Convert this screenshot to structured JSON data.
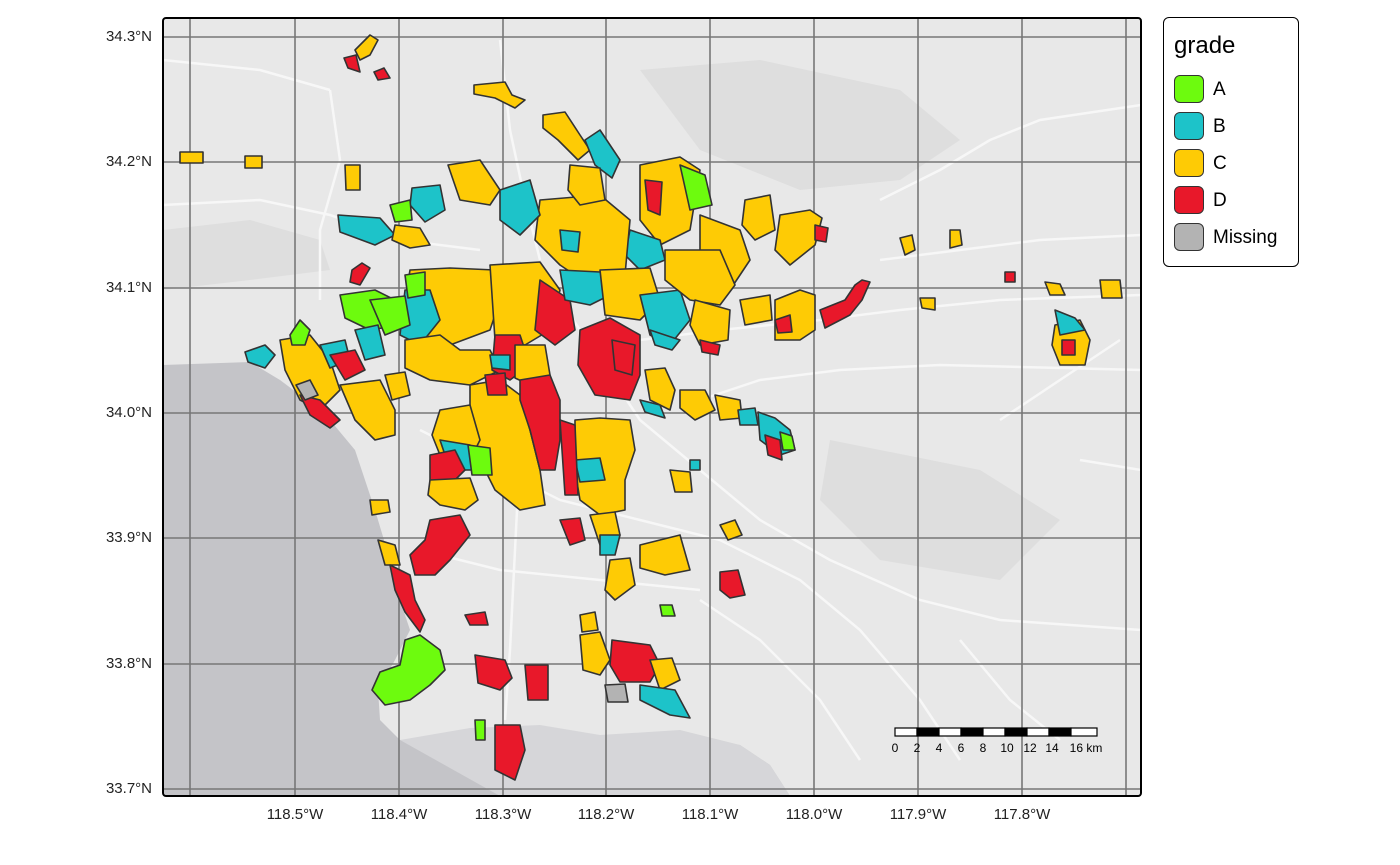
{
  "axes": {
    "y_ticks": [
      "34.3°N",
      "34.2°N",
      "34.1°N",
      "34.0°N",
      "33.9°N",
      "33.8°N",
      "33.7°N"
    ],
    "x_ticks": [
      "118.5°W",
      "118.4°W",
      "118.3°W",
      "118.2°W",
      "118.1°W",
      "118.0°W",
      "117.9°W",
      "117.8°W"
    ]
  },
  "legend": {
    "title": "grade",
    "items": [
      {
        "label": "A",
        "color": "#6dfb0e"
      },
      {
        "label": "B",
        "color": "#1dc3c9"
      },
      {
        "label": "C",
        "color": "#fecb05"
      },
      {
        "label": "D",
        "color": "#e8182a"
      },
      {
        "label": "Missing",
        "color": "#b3b3b3"
      }
    ]
  },
  "scale_bar": {
    "labels": [
      "0",
      "2",
      "4",
      "6",
      "8",
      "10",
      "12",
      "14",
      "16 km"
    ]
  },
  "colors": {
    "land": "#e8e8e8",
    "ocean": "#c4c4c8",
    "grid": "#777777",
    "road": "#f7f7f7",
    "outline": "#333333"
  }
}
